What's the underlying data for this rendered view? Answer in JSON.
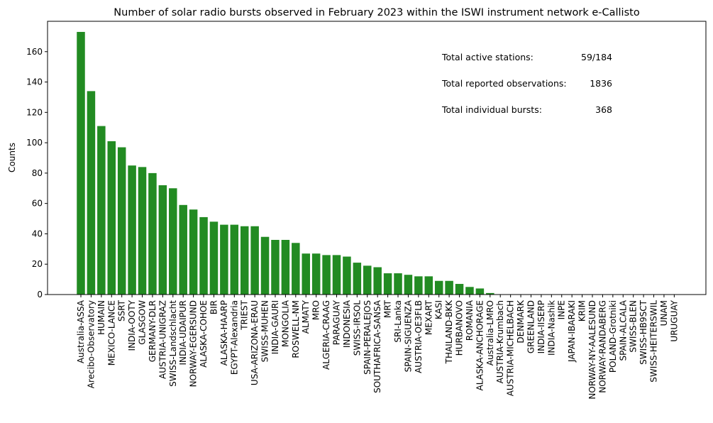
{
  "chart_data": {
    "type": "bar",
    "title": "Number of solar radio bursts observed in February 2023 within the ISWI instrument network e-Callisto",
    "xlabel": "",
    "ylabel": "Counts",
    "ylim": [
      0,
      180
    ],
    "yticks": [
      0,
      20,
      40,
      60,
      80,
      100,
      120,
      140,
      160
    ],
    "bar_color": "#228b22",
    "grid": false,
    "categories": [
      "Australia-ASSA",
      "Arecibo-Observatory",
      "HUMAIN",
      "MEXICO-LANCE",
      "SSRT",
      "INDIA-OOTY",
      "GLASGOW",
      "GERMANY-DLR",
      "AUSTRIA-UNIGRAZ",
      "SWISS-Landschlacht",
      "INDIA-UDAIPUR",
      "NORWAY-EGERSUND",
      "ALASKA-COHOE",
      "BIR",
      "ALASKA-HAARP",
      "EGYPT-Alexandria",
      "TRIEST",
      "USA-ARIZONA-ERAU",
      "SWISS-MUHEN",
      "INDIA-GAURI",
      "MONGOLIA",
      "ROSWELL-NM",
      "ALMATY",
      "MRO",
      "ALGERIA-CRAAG",
      "PARAGUAY",
      "INDONESIA",
      "SWISS-IRSOL",
      "SPAIN-PERALEJOS",
      "SOUTHAFRICA-SANSA",
      "MRT",
      "SRI-Lanka",
      "SPAIN-SIGUENZA",
      "AUSTRIA-OE3FLB",
      "MEXART",
      "KASI",
      "THAILAND-BKK",
      "HURBANOVO",
      "ROMANIA",
      "ALASKA-ANCHORAGE",
      "Australia-LMRO",
      "AUSTRIA-Krumbach",
      "AUSTRIA-MICHELBACH",
      "DENMARK",
      "GREENLAND",
      "INDIA-IISERP",
      "INDIA-Nashik",
      "INPE",
      "JAPAN-IBARAKI",
      "KRIM",
      "NORWAY-NY-AALESUND",
      "NORWAY-RANDABERG",
      "POLAND-Grotniki",
      "SPAIN-ALCALA",
      "SWISS-BLEN",
      "SWISS-HB9SCT",
      "SWISS-HEITERSWIL",
      "UNAM",
      "URUGUAY"
    ],
    "values": [
      173,
      134,
      111,
      101,
      97,
      85,
      84,
      80,
      72,
      70,
      59,
      56,
      51,
      48,
      46,
      46,
      45,
      45,
      38,
      36,
      36,
      34,
      27,
      27,
      26,
      26,
      25,
      21,
      19,
      18,
      14,
      14,
      13,
      12,
      12,
      9,
      9,
      7,
      5,
      4,
      1,
      0,
      0,
      0,
      0,
      0,
      0,
      0,
      0,
      0,
      0,
      0,
      0,
      0,
      0,
      0,
      0,
      0,
      0
    ],
    "annotations": [
      {
        "label": "Total active stations:",
        "value": "59/184"
      },
      {
        "label": "Total reported observations:",
        "value": "1836"
      },
      {
        "label": "Total individual bursts:",
        "value": "368"
      }
    ]
  }
}
